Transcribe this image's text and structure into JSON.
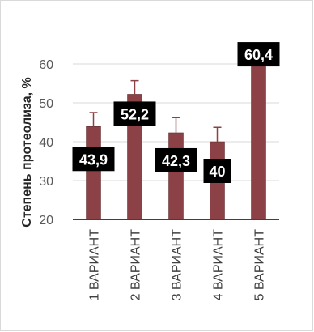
{
  "chart_data": {
    "type": "bar",
    "title": "",
    "xlabel": "",
    "ylabel": "Степень протеолиза, %",
    "categories": [
      "1 ВАРИАНТ",
      "2 ВАРИАНТ",
      "3 ВАРИАНТ",
      "4 ВАРИАНТ",
      "5 ВАРИАНТ"
    ],
    "values": [
      43.9,
      52.2,
      42.3,
      40,
      60.4
    ],
    "data_labels": [
      "43,9",
      "52,2",
      "42,3",
      "40",
      "60,4"
    ],
    "error_upper": [
      47.5,
      55.7,
      46.2,
      43.7,
      64.0
    ],
    "ylim": [
      20,
      66
    ],
    "yticks": [
      20,
      30,
      40,
      50,
      60
    ],
    "grid": true,
    "legend": "none",
    "colors": {
      "bar": "#8b4145",
      "bar_edge": "#5a2a2c",
      "error_bar": "#8b4145",
      "label_bg": "#000000",
      "label_text": "#ffffff",
      "gridline": "#d9d9d9",
      "axis": "#404040"
    }
  }
}
